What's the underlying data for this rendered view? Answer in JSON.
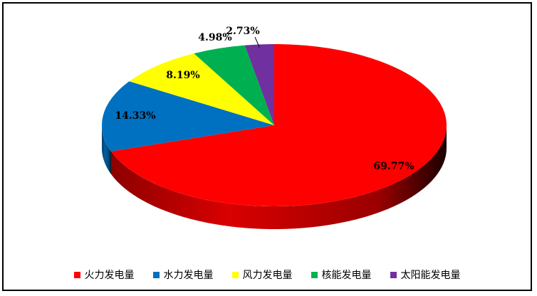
{
  "chart_data": {
    "type": "pie",
    "style": "3d",
    "start_position": "12 o'clock",
    "direction": "clockwise",
    "legend_position": "bottom",
    "slices": [
      {
        "name": "火力发电量",
        "value": 69.77,
        "label": "69.77%",
        "color": "#ff0000"
      },
      {
        "name": "水力发电量",
        "value": 14.33,
        "label": "14.33%",
        "color": "#0070c0"
      },
      {
        "name": "风力发电量",
        "value": 8.19,
        "label": "8.19%",
        "color": "#ffff00"
      },
      {
        "name": "核能发电量",
        "value": 4.98,
        "label": "4.98%",
        "color": "#00b050"
      },
      {
        "name": "太阳能发电量",
        "value": 2.73,
        "label": "2.73%",
        "color": "#7030a0"
      }
    ]
  }
}
